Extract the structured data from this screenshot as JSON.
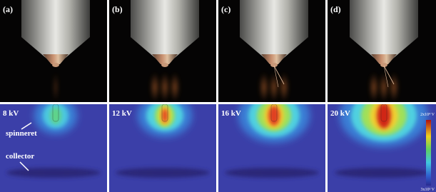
{
  "panels": [
    {
      "label": "(a)",
      "voltage": "8 kV"
    },
    {
      "label": "(b)",
      "voltage": "12 kV"
    },
    {
      "label": "(c)",
      "voltage": "16 kV"
    },
    {
      "label": "(d)",
      "voltage": "20 kV"
    }
  ],
  "annotations": {
    "spinneret": "spinneret",
    "collector": "collector"
  },
  "colorbar": {
    "max_label": "2x10⁴ V",
    "min_label": "3x10¹ V"
  }
}
